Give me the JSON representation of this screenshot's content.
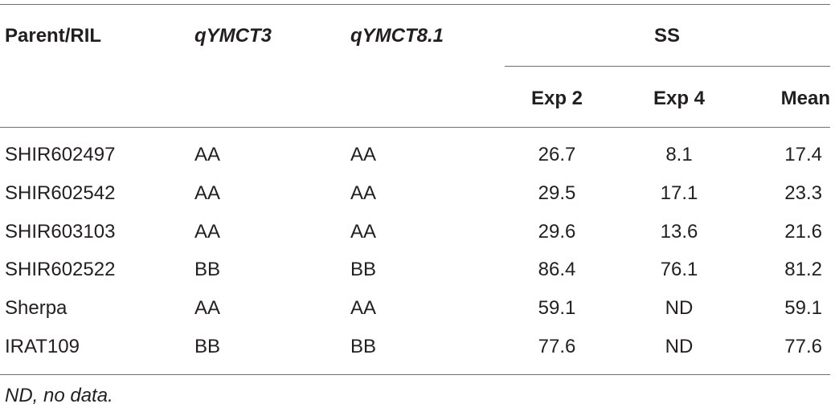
{
  "table": {
    "header": [
      "Parent/RIL",
      "qYMCT3",
      "qYMCT8.1",
      "SS"
    ],
    "subheader": [
      "Exp 2",
      "Exp 4",
      "Mean"
    ],
    "rows": [
      [
        "SHIR602497",
        "AA",
        "AA",
        "26.7",
        "8.1",
        "17.4"
      ],
      [
        "SHIR602542",
        "AA",
        "AA",
        "29.5",
        "17.1",
        "23.3"
      ],
      [
        "SHIR603103",
        "AA",
        "AA",
        "29.6",
        "13.6",
        "21.6"
      ],
      [
        "SHIR602522",
        "BB",
        "BB",
        "86.4",
        "76.1",
        "81.2"
      ],
      [
        "Sherpa",
        "AA",
        "AA",
        "59.1",
        "ND",
        "59.1"
      ],
      [
        "IRAT109",
        "BB",
        "BB",
        "77.6",
        "ND",
        "77.6"
      ]
    ],
    "footnote": "ND, no data."
  }
}
